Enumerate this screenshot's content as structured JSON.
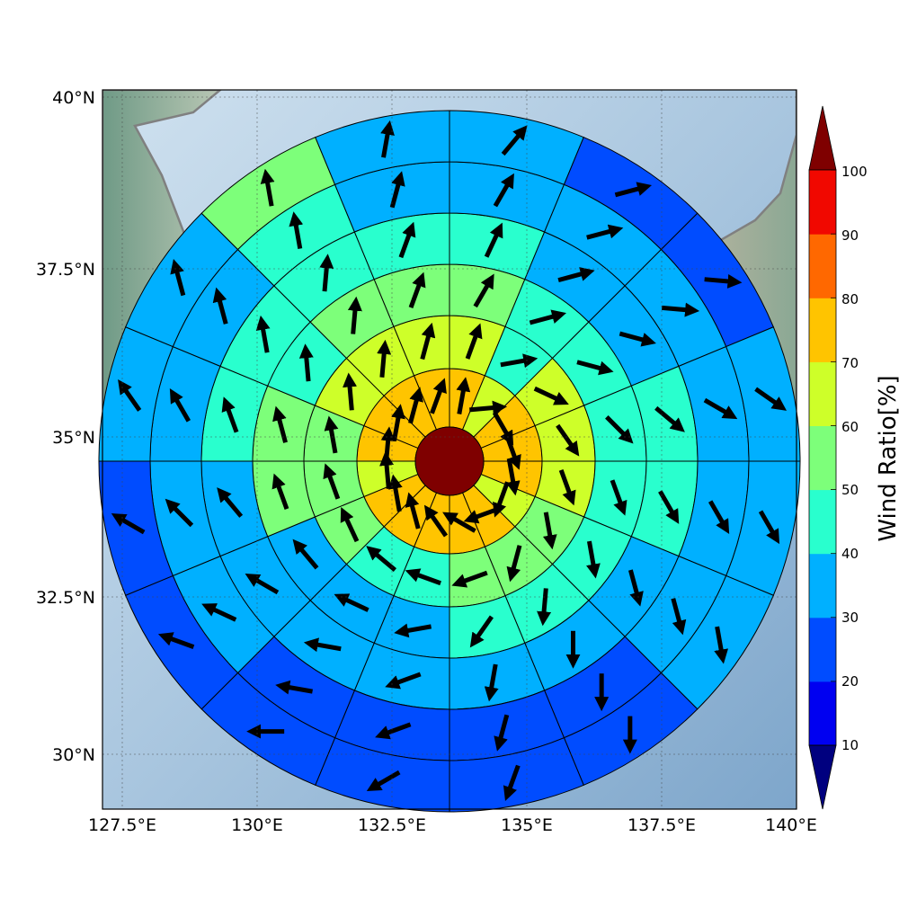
{
  "map": {
    "x_ticks": [
      "127.5°E",
      "130°E",
      "132.5°E",
      "135°E",
      "137.5°E",
      "140°E"
    ],
    "y_ticks": [
      "40°N",
      "37.5°N",
      "35°N",
      "32.5°N",
      "30°N"
    ]
  },
  "colorbar": {
    "label": "Wind Ratio[%]",
    "ticks": [
      "10",
      "20",
      "30",
      "40",
      "50",
      "60",
      "70",
      "80",
      "90",
      "100"
    ],
    "colors": [
      "#00007f",
      "#0000f1",
      "#004cff",
      "#00b0ff",
      "#29ffce",
      "#7dff7a",
      "#ceff29",
      "#ffc400",
      "#ff6800",
      "#f10800",
      "#7f0000"
    ]
  },
  "chart_data": {
    "type": "heatmap",
    "projection": "polar grid centered over Japan",
    "center": {
      "lon": 133.5,
      "lat": 34.6
    },
    "x_range_lon": [
      126.9,
      140.0
    ],
    "y_range_lat": [
      29.1,
      40.0
    ],
    "ring_count": 6,
    "sector_count": 16,
    "sector_order": "clockwise from north",
    "center_value_pct": 100,
    "ring_values_pct": [
      [
        75,
        65,
        75,
        75,
        75,
        65,
        75,
        75,
        75,
        75,
        75,
        65,
        75,
        75,
        75,
        75
      ],
      [
        65,
        45,
        65,
        65,
        65,
        55,
        55,
        55,
        45,
        45,
        55,
        55,
        55,
        65,
        65,
        65
      ],
      [
        55,
        45,
        45,
        45,
        45,
        45,
        45,
        45,
        35,
        35,
        35,
        55,
        55,
        45,
        55,
        55
      ],
      [
        45,
        35,
        35,
        45,
        45,
        35,
        35,
        35,
        35,
        35,
        35,
        35,
        45,
        45,
        45,
        45
      ],
      [
        35,
        35,
        35,
        35,
        35,
        35,
        25,
        25,
        25,
        25,
        35,
        35,
        35,
        35,
        45,
        35
      ],
      [
        35,
        25,
        25,
        35,
        35,
        35,
        25,
        25,
        25,
        25,
        25,
        25,
        35,
        35,
        55,
        35
      ]
    ],
    "wind_direction_deg": [
      [
        10,
        85,
        150,
        160,
        170,
        200,
        250,
        300,
        325,
        345,
        350,
        355,
        5,
        10,
        15,
        20
      ],
      [
        20,
        80,
        115,
        145,
        160,
        170,
        195,
        250,
        290,
        310,
        335,
        340,
        350,
        355,
        5,
        15
      ],
      [
        30,
        75,
        105,
        135,
        160,
        170,
        185,
        215,
        260,
        295,
        320,
        340,
        345,
        355,
        5,
        20
      ],
      [
        25,
        75,
        105,
        130,
        150,
        165,
        180,
        190,
        250,
        280,
        300,
        320,
        340,
        350,
        5,
        20
      ],
      [
        30,
        75,
        95,
        120,
        150,
        165,
        180,
        195,
        250,
        280,
        295,
        315,
        330,
        345,
        350,
        15
      ],
      [
        40,
        75,
        95,
        125,
        150,
        170,
        180,
        200,
        240,
        270,
        290,
        300,
        325,
        345,
        350,
        10
      ]
    ]
  }
}
